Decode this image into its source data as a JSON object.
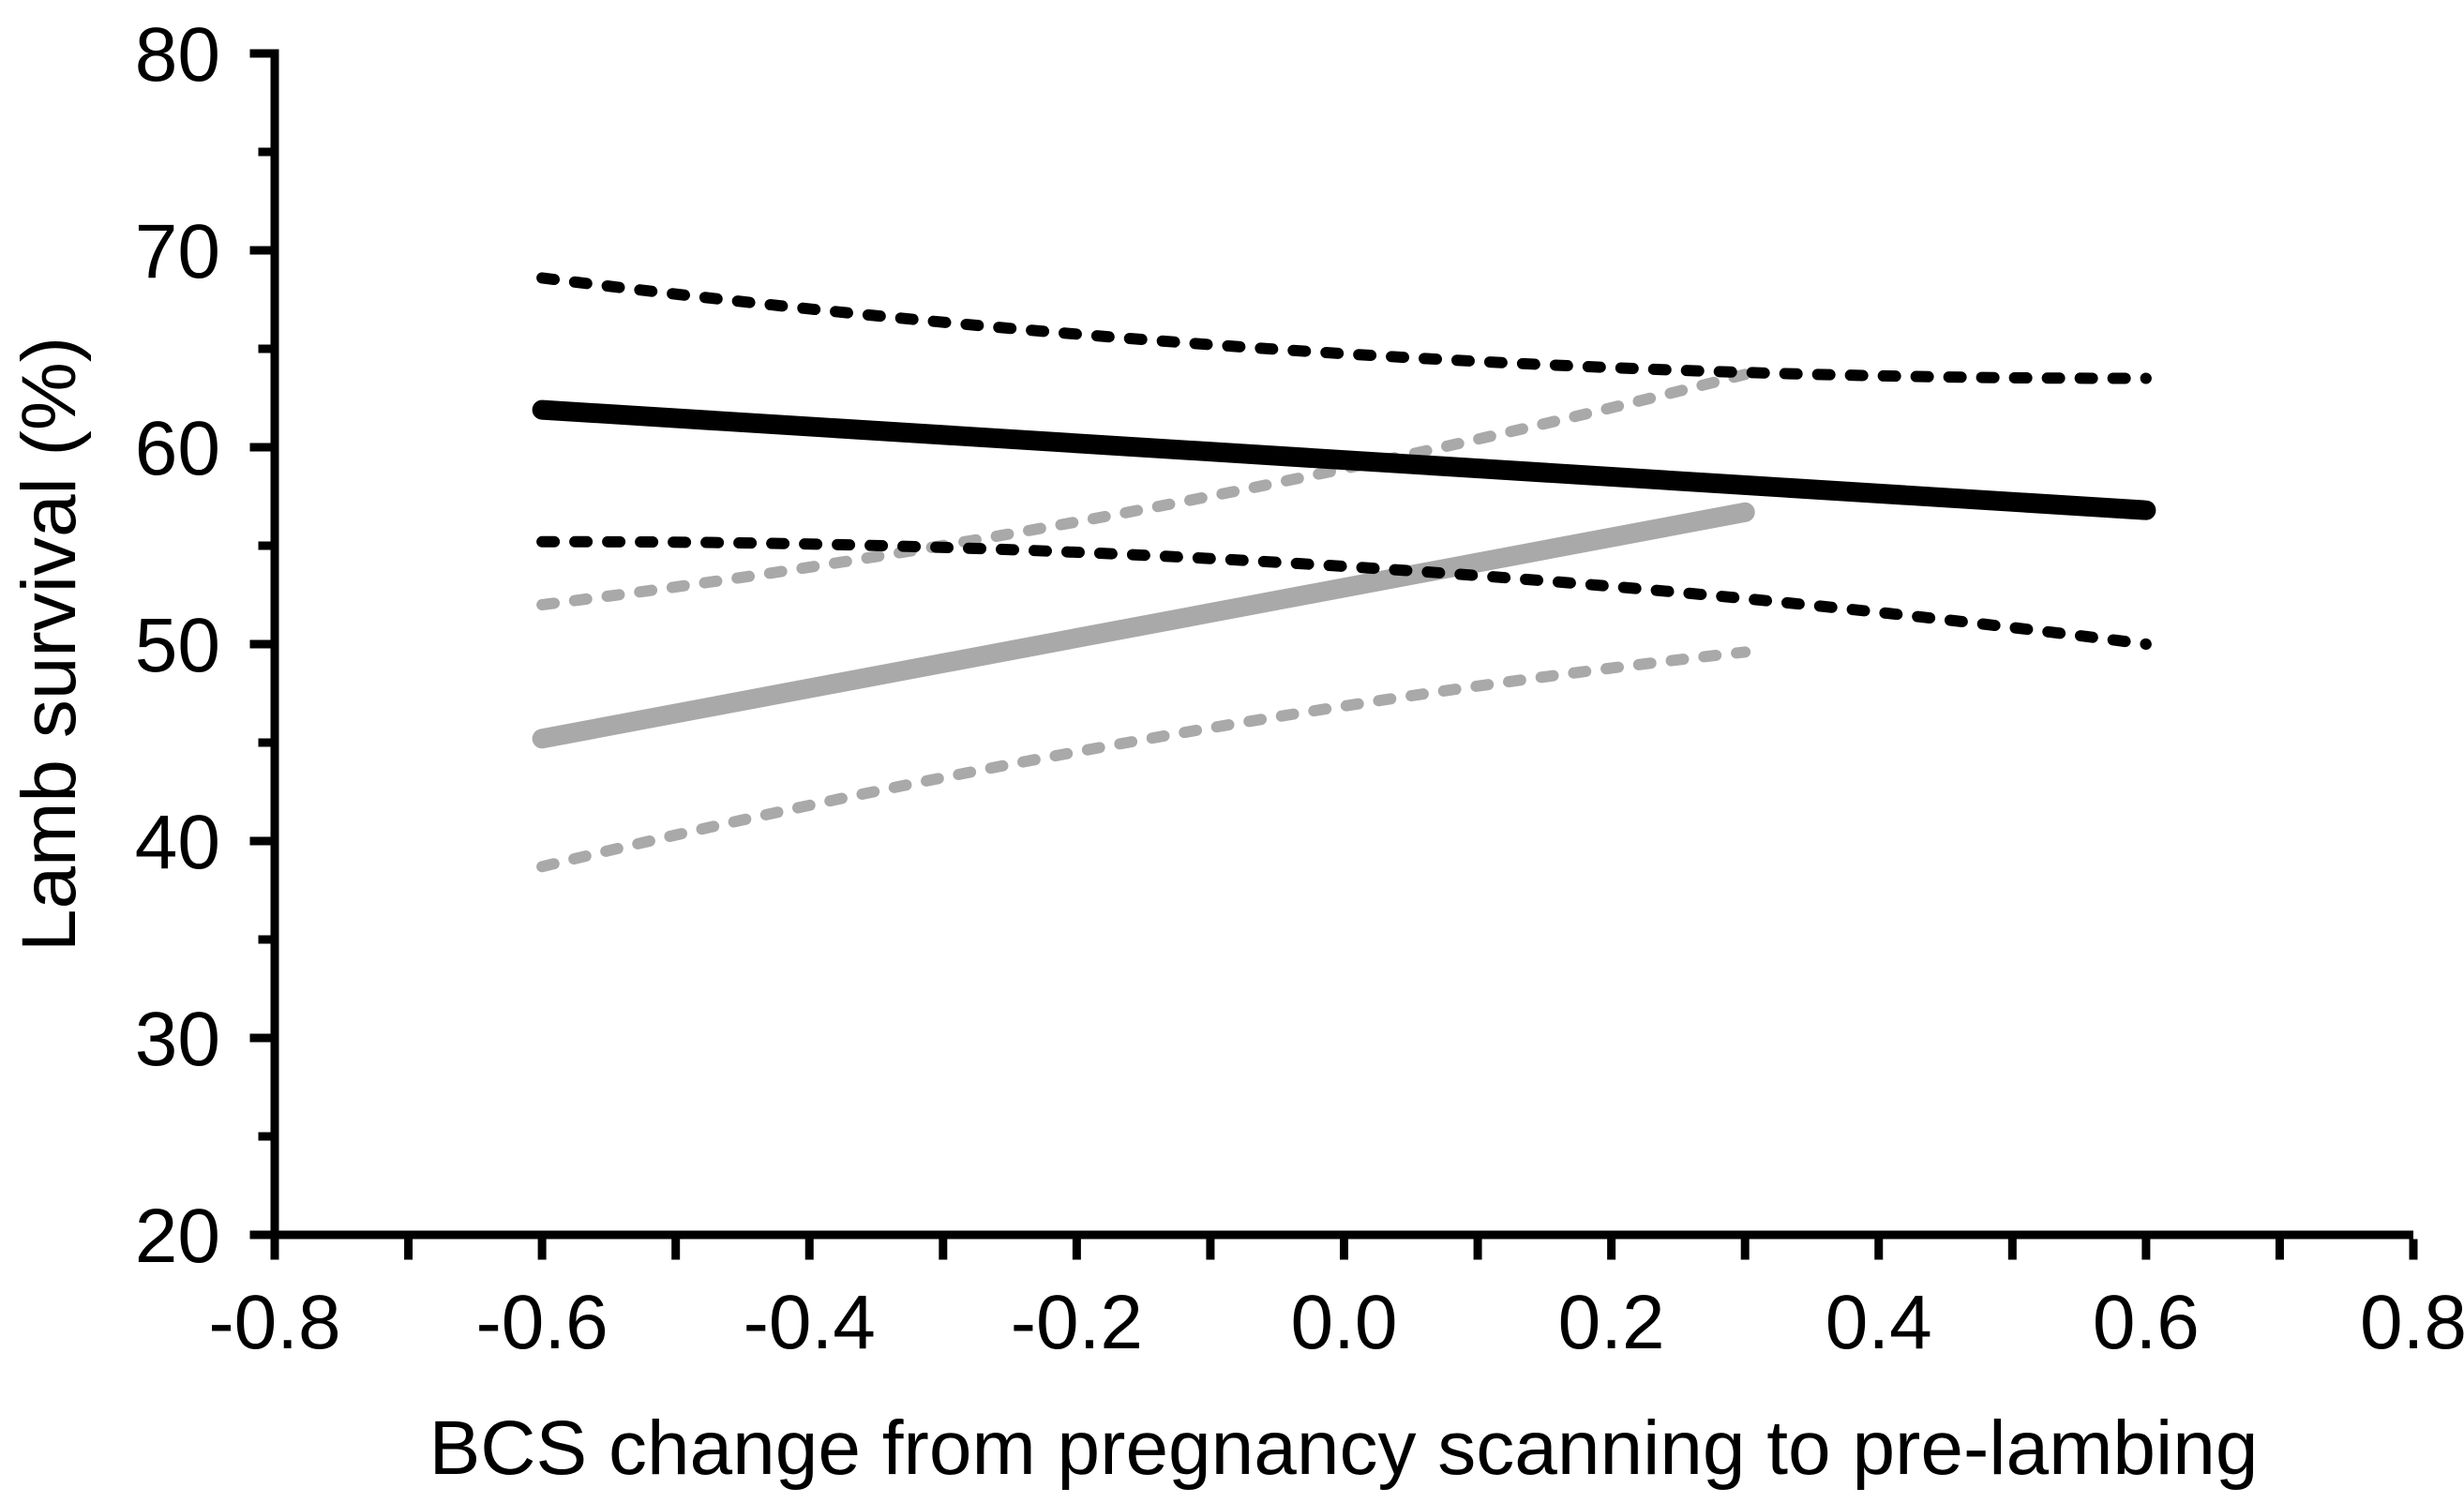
{
  "chart_data": {
    "type": "line",
    "title": "",
    "xlabel": "BCS change from pregnancy scanning to pre-lambing",
    "ylabel": "Lamb survival (%)",
    "xlim": [
      -0.8,
      0.8
    ],
    "ylim": [
      20,
      80
    ],
    "grid": false,
    "legend": "none",
    "x_major_ticks": [
      {
        "value": -0.8,
        "label": "-0.8"
      },
      {
        "value": -0.6,
        "label": "-0.6"
      },
      {
        "value": -0.4,
        "label": "-0.4"
      },
      {
        "value": -0.2,
        "label": "-0.2"
      },
      {
        "value": 0.0,
        "label": "0.0"
      },
      {
        "value": 0.2,
        "label": "0.2"
      },
      {
        "value": 0.4,
        "label": "0.4"
      },
      {
        "value": 0.6,
        "label": "0.6"
      },
      {
        "value": 0.8,
        "label": "0.8"
      }
    ],
    "x_minor_tick_values": [
      -0.7,
      -0.5,
      -0.3,
      -0.1,
      0.1,
      0.3,
      0.5,
      0.7
    ],
    "y_major_ticks": [
      {
        "value": 20,
        "label": "20"
      },
      {
        "value": 30,
        "label": "30"
      },
      {
        "value": 40,
        "label": "40"
      },
      {
        "value": 50,
        "label": "50"
      },
      {
        "value": 60,
        "label": "60"
      },
      {
        "value": 70,
        "label": "70"
      },
      {
        "value": 80,
        "label": "80"
      }
    ],
    "y_minor_tick_values": [
      25,
      35,
      45,
      55,
      65,
      75
    ],
    "colors": {
      "black_series": "#000000",
      "gray_series": "#a9a9a9"
    },
    "series": [
      {
        "name": "gray-ci-upper",
        "style": "dashed",
        "color": "#a9a9a9",
        "x": [
          -0.6,
          0.3
        ],
        "y": [
          52.0,
          63.7
        ],
        "mid_offset": -1.0
      },
      {
        "name": "gray-ci-lower",
        "style": "dashed",
        "color": "#a9a9a9",
        "x": [
          -0.6,
          0.3
        ],
        "y": [
          38.7,
          49.6
        ],
        "mid_offset": 1.0
      },
      {
        "name": "gray-regression-line",
        "style": "solid",
        "color": "#a9a9a9",
        "x": [
          -0.6,
          0.3
        ],
        "y": [
          45.2,
          56.7
        ],
        "mid_offset": 0
      },
      {
        "name": "black-ci-upper",
        "style": "dashed",
        "color": "#000000",
        "x": [
          -0.6,
          0.6
        ],
        "y": [
          68.6,
          63.5
        ],
        "mid_offset": -1.3
      },
      {
        "name": "black-ci-lower",
        "style": "dashed",
        "color": "#000000",
        "x": [
          -0.6,
          0.6
        ],
        "y": [
          55.2,
          50.0
        ],
        "mid_offset": 1.35
      },
      {
        "name": "black-regression-line",
        "style": "solid",
        "color": "#000000",
        "x": [
          -0.6,
          0.6
        ],
        "y": [
          61.9,
          56.8
        ],
        "mid_offset": 0
      }
    ]
  }
}
